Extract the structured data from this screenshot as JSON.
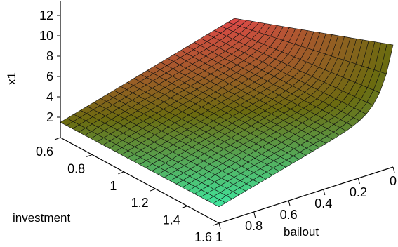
{
  "chart_data": {
    "type": "surface",
    "title": "",
    "zlabel": "x1",
    "xlabel": "investment",
    "ylabel": "bailout",
    "x_ticks": [
      "0.6",
      "0.8",
      "1",
      "1.2",
      "1.4",
      "1.6"
    ],
    "y_ticks": [
      "0",
      "0.2",
      "0.4",
      "0.6",
      "0.8",
      "1"
    ],
    "z_ticks": [
      "2",
      "4",
      "6",
      "8",
      "10",
      "12"
    ],
    "x": [
      0.6,
      0.8,
      1.0,
      1.2,
      1.4,
      1.6
    ],
    "y": [
      0.0,
      0.2,
      0.4,
      0.6,
      0.8,
      1.0
    ],
    "xlim": [
      0.6,
      1.6
    ],
    "ylim": [
      0.0,
      1.0
    ],
    "zlim": [
      0,
      12
    ],
    "corner_values": [
      {
        "investment": 0.6,
        "bailout": 1.0,
        "x1": 1.5
      },
      {
        "investment": 1.6,
        "bailout": 1.0,
        "x1": 1.6
      },
      {
        "investment": 0.6,
        "bailout": 0.0,
        "x1": 6.2
      },
      {
        "investment": 1.6,
        "bailout": 0.0,
        "x1": 12.0
      }
    ],
    "grid": true,
    "colors": {
      "low": "#e04848",
      "mid": "#6b6b10",
      "high": "#3fe8a0",
      "grid_line": "#111111",
      "axis": "#000000"
    }
  }
}
